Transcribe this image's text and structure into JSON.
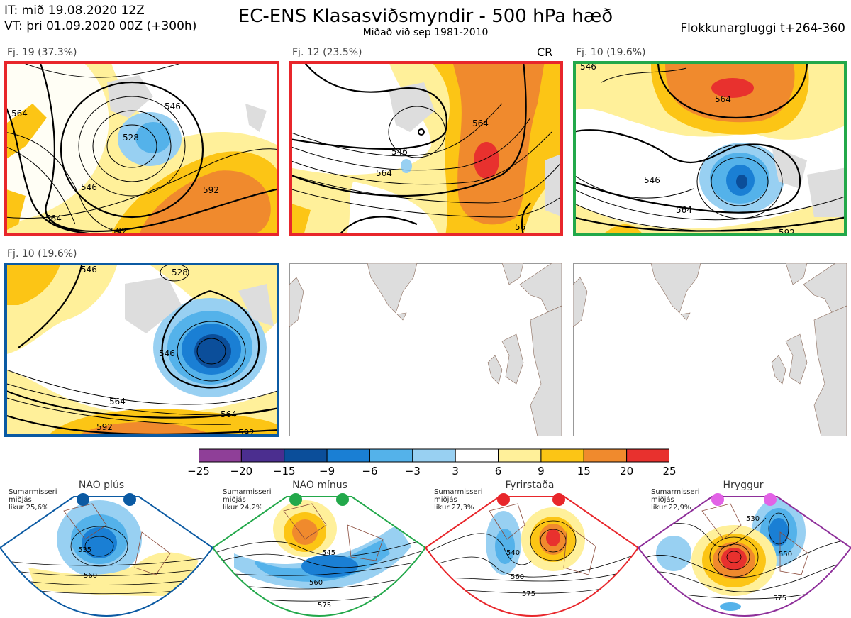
{
  "header": {
    "it_line": "IT: mið 19.08.2020 12Z",
    "vt_line": "VT: þri 01.09.2020 00Z  (+300h)",
    "title": "EC-ENS Klasasviðsmyndir - 500 hPa hæð",
    "subtitle": "Miðað við sep 1981-2010",
    "window": "Flokkunargluggi t+264-360"
  },
  "panels": [
    {
      "label": "Fj. 19 (37.3%)",
      "border": "#e8262b",
      "extra": "",
      "contours": [
        "528",
        "546",
        "546",
        "564",
        "564",
        "592",
        "592"
      ]
    },
    {
      "label": "Fj. 12 (23.5%)",
      "border": "#e8262b",
      "extra": "CR",
      "contours": [
        "546",
        "564",
        "564",
        "56"
      ]
    },
    {
      "label": "Fj. 10 (19.6%)",
      "border": "#22a84a",
      "extra": "",
      "contours": [
        "546",
        "564",
        "564",
        "546",
        "592"
      ]
    },
    {
      "label": "Fj. 10 (19.6%)",
      "border": "#0b5aa3",
      "extra": "",
      "contours": [
        "528",
        "546",
        "546",
        "564",
        "564",
        "592",
        "592"
      ]
    }
  ],
  "colorbar": {
    "ticks": [
      "−25",
      "−20",
      "−15",
      "−9",
      "−6",
      "−3",
      "3",
      "6",
      "9",
      "15",
      "20",
      "25"
    ],
    "colors": [
      "#8f3f98",
      "#4b2e8f",
      "#0b4e9a",
      "#1a7fd4",
      "#54b2ea",
      "#98d0f2",
      "#ffffff",
      "#fff09a",
      "#fcc515",
      "#f08a2d",
      "#e8312e",
      "#a51213"
    ]
  },
  "regimes": [
    {
      "title": "NAO plús",
      "season": "Sumarmisseri",
      "median": "miðjás",
      "prob": "líkur 25,6%",
      "color": "#0b5aa3",
      "contours": [
        "535",
        "560"
      ]
    },
    {
      "title": "NAO mínus",
      "season": "Sumarmisseri",
      "median": "miðjás",
      "prob": "líkur 24,2%",
      "color": "#22a84a",
      "contours": [
        "545",
        "560",
        "575"
      ]
    },
    {
      "title": "Fyrirstaða",
      "season": "Sumarmisseri",
      "median": "miðjás",
      "prob": "líkur 27,3%",
      "color": "#e8262b",
      "contours": [
        "540",
        "560",
        "575"
      ]
    },
    {
      "title": "Hryggur",
      "season": "Sumarmisseri",
      "median": "miðjás",
      "prob": "líkur 22,9%",
      "color": "#e262e6",
      "contours": [
        "530",
        "550",
        "575"
      ]
    }
  ]
}
